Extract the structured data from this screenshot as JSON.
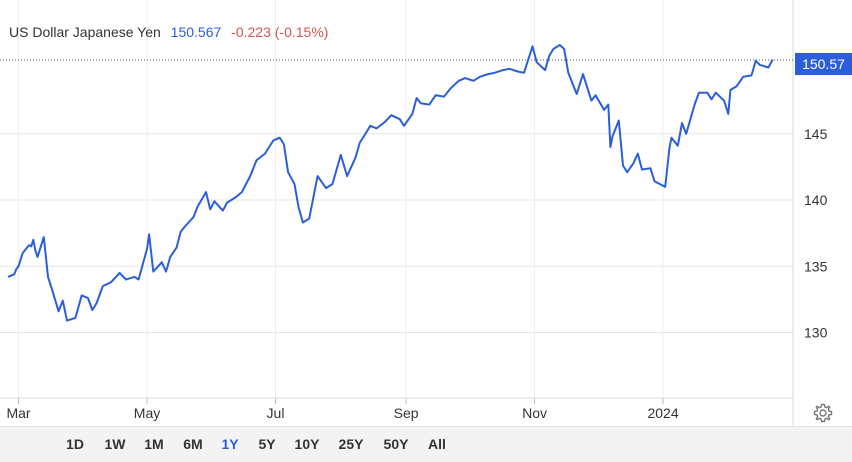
{
  "header": {
    "instrument": "US Dollar Japanese Yen",
    "price": "150.567",
    "change": "-0.223 (-0.15%)",
    "price_tag": "150.57"
  },
  "range_buttons": [
    "1D",
    "1W",
    "1M",
    "6M",
    "1Y",
    "5Y",
    "10Y",
    "25Y",
    "50Y",
    "All"
  ],
  "active_range": "1Y",
  "colors": {
    "line": "#2b5fd9",
    "change": "#d9534f",
    "price": "#2b5fd9"
  },
  "chart_data": {
    "type": "line",
    "title": "US Dollar Japanese Yen",
    "xlabel": "",
    "ylabel": "",
    "x_range": [
      "2023-02-24",
      "2024-02-26"
    ],
    "ylim": [
      125,
      155.5
    ],
    "y_ticks": [
      130,
      135,
      140,
      145
    ],
    "x_tick_labels": [
      {
        "date": "2023-03-01",
        "label": "Mar"
      },
      {
        "date": "2023-05-01",
        "label": "May"
      },
      {
        "date": "2023-07-01",
        "label": "Jul"
      },
      {
        "date": "2023-09-01",
        "label": "Sep"
      },
      {
        "date": "2023-11-01",
        "label": "Nov"
      },
      {
        "date": "2024-01-01",
        "label": "2024"
      }
    ],
    "grid": true,
    "last_value": 150.57,
    "series": [
      {
        "values": [
          [
            "2023-02-24",
            134.2
          ],
          [
            "2023-02-27",
            134.4
          ],
          [
            "2023-02-28",
            134.8
          ],
          [
            "2023-03-01",
            135.0
          ],
          [
            "2023-03-03",
            136.0
          ],
          [
            "2023-03-06",
            136.6
          ],
          [
            "2023-03-07",
            136.5
          ],
          [
            "2023-03-08",
            137.0
          ],
          [
            "2023-03-09",
            136.2
          ],
          [
            "2023-03-10",
            135.7
          ],
          [
            "2023-03-13",
            137.2
          ],
          [
            "2023-03-15",
            134.2
          ],
          [
            "2023-03-17",
            133.2
          ],
          [
            "2023-03-20",
            131.6
          ],
          [
            "2023-03-22",
            132.4
          ],
          [
            "2023-03-24",
            130.9
          ],
          [
            "2023-03-28",
            131.1
          ],
          [
            "2023-03-31",
            132.8
          ],
          [
            "2023-04-03",
            132.6
          ],
          [
            "2023-04-05",
            131.7
          ],
          [
            "2023-04-07",
            132.2
          ],
          [
            "2023-04-10",
            133.5
          ],
          [
            "2023-04-14",
            133.8
          ],
          [
            "2023-04-18",
            134.5
          ],
          [
            "2023-04-21",
            134.0
          ],
          [
            "2023-04-25",
            134.2
          ],
          [
            "2023-04-27",
            134.0
          ],
          [
            "2023-05-01",
            136.3
          ],
          [
            "2023-05-02",
            137.4
          ],
          [
            "2023-05-04",
            134.6
          ],
          [
            "2023-05-08",
            135.3
          ],
          [
            "2023-05-10",
            134.6
          ],
          [
            "2023-05-12",
            135.7
          ],
          [
            "2023-05-15",
            136.4
          ],
          [
            "2023-05-17",
            137.6
          ],
          [
            "2023-05-19",
            138.0
          ],
          [
            "2023-05-23",
            138.7
          ],
          [
            "2023-05-25",
            139.5
          ],
          [
            "2023-05-29",
            140.6
          ],
          [
            "2023-05-31",
            139.3
          ],
          [
            "2023-06-02",
            139.9
          ],
          [
            "2023-06-06",
            139.2
          ],
          [
            "2023-06-08",
            139.8
          ],
          [
            "2023-06-12",
            140.2
          ],
          [
            "2023-06-15",
            140.6
          ],
          [
            "2023-06-19",
            141.8
          ],
          [
            "2023-06-22",
            143.0
          ],
          [
            "2023-06-26",
            143.5
          ],
          [
            "2023-06-30",
            144.5
          ],
          [
            "2023-07-03",
            144.7
          ],
          [
            "2023-07-05",
            144.2
          ],
          [
            "2023-07-07",
            142.1
          ],
          [
            "2023-07-10",
            141.2
          ],
          [
            "2023-07-12",
            139.4
          ],
          [
            "2023-07-14",
            138.3
          ],
          [
            "2023-07-17",
            138.6
          ],
          [
            "2023-07-21",
            141.8
          ],
          [
            "2023-07-25",
            140.9
          ],
          [
            "2023-07-28",
            141.2
          ],
          [
            "2023-08-01",
            143.4
          ],
          [
            "2023-08-04",
            141.8
          ],
          [
            "2023-08-08",
            143.2
          ],
          [
            "2023-08-10",
            144.3
          ],
          [
            "2023-08-15",
            145.6
          ],
          [
            "2023-08-18",
            145.4
          ],
          [
            "2023-08-22",
            145.9
          ],
          [
            "2023-08-25",
            146.4
          ],
          [
            "2023-08-29",
            146.1
          ],
          [
            "2023-08-31",
            145.6
          ],
          [
            "2023-09-04",
            146.5
          ],
          [
            "2023-09-06",
            147.7
          ],
          [
            "2023-09-08",
            147.3
          ],
          [
            "2023-09-12",
            147.2
          ],
          [
            "2023-09-15",
            147.9
          ],
          [
            "2023-09-19",
            147.8
          ],
          [
            "2023-09-22",
            148.4
          ],
          [
            "2023-09-26",
            149.0
          ],
          [
            "2023-09-29",
            149.2
          ],
          [
            "2023-10-03",
            149.0
          ],
          [
            "2023-10-06",
            149.3
          ],
          [
            "2023-10-10",
            149.5
          ],
          [
            "2023-10-13",
            149.6
          ],
          [
            "2023-10-17",
            149.8
          ],
          [
            "2023-10-20",
            149.9
          ],
          [
            "2023-10-24",
            149.7
          ],
          [
            "2023-10-27",
            149.6
          ],
          [
            "2023-10-31",
            151.6
          ],
          [
            "2023-11-02",
            150.4
          ],
          [
            "2023-11-06",
            149.8
          ],
          [
            "2023-11-08",
            150.9
          ],
          [
            "2023-11-10",
            151.4
          ],
          [
            "2023-11-13",
            151.7
          ],
          [
            "2023-11-15",
            151.4
          ],
          [
            "2023-11-17",
            149.6
          ],
          [
            "2023-11-21",
            148.0
          ],
          [
            "2023-11-24",
            149.5
          ],
          [
            "2023-11-28",
            147.5
          ],
          [
            "2023-11-30",
            147.9
          ],
          [
            "2023-12-04",
            146.8
          ],
          [
            "2023-12-06",
            147.2
          ],
          [
            "2023-12-07",
            144.0
          ],
          [
            "2023-12-08",
            144.8
          ],
          [
            "2023-12-11",
            146.0
          ],
          [
            "2023-12-13",
            142.6
          ],
          [
            "2023-12-15",
            142.1
          ],
          [
            "2023-12-18",
            142.8
          ],
          [
            "2023-12-20",
            143.5
          ],
          [
            "2023-12-22",
            142.3
          ],
          [
            "2023-12-26",
            142.4
          ],
          [
            "2023-12-28",
            141.4
          ],
          [
            "2024-01-02",
            141.0
          ],
          [
            "2024-01-04",
            143.9
          ],
          [
            "2024-01-05",
            144.7
          ],
          [
            "2024-01-08",
            144.1
          ],
          [
            "2024-01-10",
            145.8
          ],
          [
            "2024-01-12",
            145.0
          ],
          [
            "2024-01-16",
            147.2
          ],
          [
            "2024-01-18",
            148.1
          ],
          [
            "2024-01-22",
            148.1
          ],
          [
            "2024-01-24",
            147.6
          ],
          [
            "2024-01-26",
            148.1
          ],
          [
            "2024-01-30",
            147.5
          ],
          [
            "2024-02-01",
            146.5
          ],
          [
            "2024-02-02",
            148.3
          ],
          [
            "2024-02-05",
            148.6
          ],
          [
            "2024-02-08",
            149.3
          ],
          [
            "2024-02-12",
            149.4
          ],
          [
            "2024-02-14",
            150.5
          ],
          [
            "2024-02-16",
            150.2
          ],
          [
            "2024-02-20",
            150.0
          ],
          [
            "2024-02-22",
            150.6
          ]
        ]
      }
    ]
  }
}
